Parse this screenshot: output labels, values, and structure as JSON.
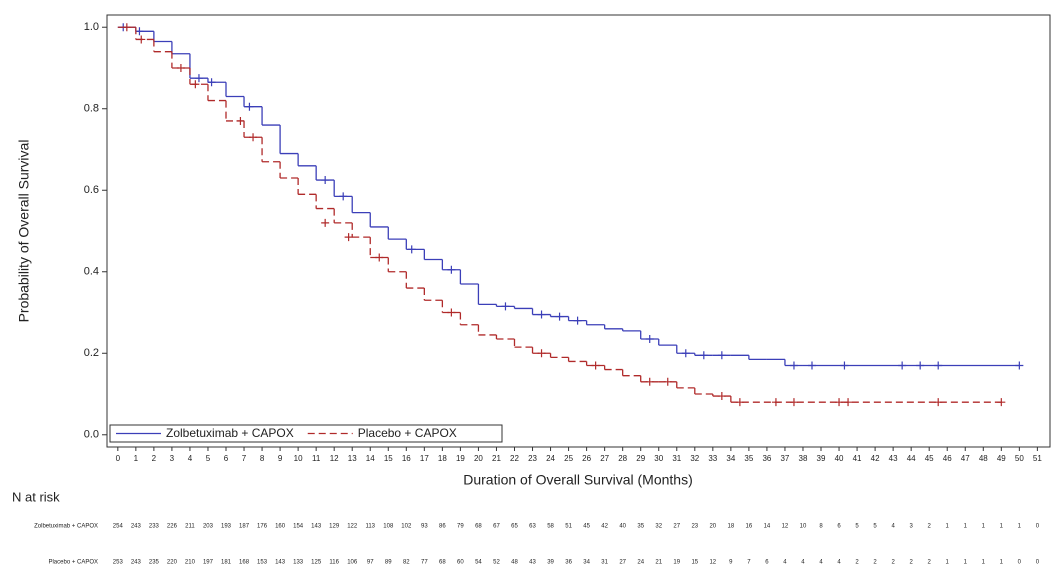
{
  "chart_data": {
    "type": "step",
    "ylabel": "Probability of Overall Survival",
    "xlabel": "Duration of Overall Survival (Months)",
    "xlim": [
      -0.6,
      51.7
    ],
    "ylim": [
      -0.03,
      1.03
    ],
    "xticks": [
      0,
      1,
      2,
      3,
      4,
      5,
      6,
      7,
      8,
      9,
      10,
      11,
      12,
      13,
      14,
      15,
      16,
      17,
      18,
      19,
      20,
      21,
      22,
      23,
      24,
      25,
      26,
      27,
      28,
      29,
      30,
      31,
      32,
      33,
      34,
      35,
      36,
      37,
      38,
      39,
      40,
      41,
      42,
      43,
      44,
      45,
      46,
      47,
      48,
      49,
      50,
      51
    ],
    "yticks": [
      {
        "value": 0,
        "label": "0.0"
      },
      0.2,
      0.4,
      0.6,
      0.8,
      {
        "value": 1,
        "label": "1.0"
      }
    ],
    "legend_position": "lower left",
    "series": [
      {
        "name": "Zolbetuximab + CAPOX",
        "color": "#3b3fb8",
        "dash": false,
        "x": [
          0,
          1,
          2,
          3,
          4,
          5,
          6,
          7,
          8,
          9,
          10,
          11,
          12,
          13,
          14,
          15,
          16,
          17,
          18,
          19,
          20,
          21,
          22,
          23,
          24,
          25,
          26,
          27,
          28,
          29,
          30,
          31,
          32,
          33,
          34,
          35,
          36,
          37,
          38,
          50
        ],
        "values": [
          1.0,
          0.99,
          0.965,
          0.935,
          0.875,
          0.865,
          0.83,
          0.805,
          0.76,
          0.69,
          0.66,
          0.625,
          0.585,
          0.545,
          0.51,
          0.48,
          0.455,
          0.43,
          0.405,
          0.37,
          0.32,
          0.315,
          0.31,
          0.295,
          0.29,
          0.28,
          0.27,
          0.26,
          0.255,
          0.235,
          0.22,
          0.2,
          0.195,
          0.195,
          0.195,
          0.185,
          0.185,
          0.17,
          0.17,
          0.17
        ],
        "censored_x": [
          0.3,
          1.2,
          4.5,
          5.2,
          7.3,
          11.5,
          12.5,
          16.3,
          18.5,
          21.5,
          23.5,
          24.5,
          25.5,
          29.5,
          31.5,
          32.5,
          33.5,
          37.5,
          38.5,
          40.3,
          43.5,
          44.5,
          45.5,
          50
        ],
        "censored_y": [
          1.0,
          0.99,
          0.875,
          0.865,
          0.805,
          0.625,
          0.585,
          0.455,
          0.405,
          0.315,
          0.295,
          0.29,
          0.28,
          0.235,
          0.2,
          0.195,
          0.195,
          0.17,
          0.17,
          0.17,
          0.17,
          0.17,
          0.17,
          0.17
        ],
        "at_risk": [
          254,
          243,
          233,
          226,
          211,
          203,
          193,
          187,
          176,
          160,
          154,
          143,
          129,
          122,
          113,
          108,
          102,
          93,
          86,
          79,
          68,
          67,
          65,
          63,
          58,
          51,
          45,
          42,
          40,
          35,
          32,
          27,
          23,
          20,
          18,
          16,
          14,
          12,
          10,
          8,
          6,
          5,
          5,
          4,
          3,
          2,
          1,
          1,
          1,
          1,
          1,
          0
        ]
      },
      {
        "name": "Placebo + CAPOX",
        "color": "#b02a2a",
        "dash": true,
        "x": [
          0,
          1,
          2,
          3,
          4,
          5,
          6,
          7,
          8,
          9,
          10,
          11,
          12,
          13,
          14,
          15,
          16,
          17,
          18,
          19,
          20,
          21,
          22,
          23,
          24,
          25,
          26,
          27,
          28,
          29,
          30,
          31,
          32,
          33,
          34,
          49
        ],
        "values": [
          1.0,
          0.97,
          0.94,
          0.9,
          0.86,
          0.82,
          0.77,
          0.73,
          0.67,
          0.63,
          0.59,
          0.555,
          0.52,
          0.485,
          0.435,
          0.4,
          0.36,
          0.33,
          0.3,
          0.27,
          0.245,
          0.235,
          0.215,
          0.2,
          0.19,
          0.18,
          0.17,
          0.16,
          0.145,
          0.13,
          0.13,
          0.115,
          0.1,
          0.095,
          0.08,
          0.08
        ],
        "censored_x": [
          0.5,
          1.3,
          3.5,
          4.3,
          6.8,
          7.5,
          11.5,
          12.8,
          14.5,
          18.5,
          23.5,
          26.5,
          29.5,
          30.5,
          33.5,
          34.5,
          36.5,
          37.5,
          40,
          40.5,
          45.5,
          49
        ],
        "censored_y": [
          1.0,
          0.97,
          0.9,
          0.86,
          0.77,
          0.73,
          0.52,
          0.485,
          0.435,
          0.3,
          0.2,
          0.17,
          0.13,
          0.13,
          0.095,
          0.08,
          0.08,
          0.08,
          0.08,
          0.08,
          0.08,
          0.08
        ],
        "at_risk": [
          253,
          243,
          235,
          220,
          210,
          197,
          181,
          168,
          153,
          143,
          133,
          125,
          116,
          106,
          97,
          89,
          82,
          77,
          68,
          60,
          54,
          52,
          48,
          43,
          39,
          36,
          34,
          31,
          27,
          24,
          21,
          19,
          15,
          12,
          9,
          7,
          6,
          4,
          4,
          4,
          4,
          2,
          2,
          2,
          2,
          2,
          1,
          1,
          1,
          1,
          0,
          0
        ]
      }
    ],
    "at_risk_title": "N at risk"
  }
}
